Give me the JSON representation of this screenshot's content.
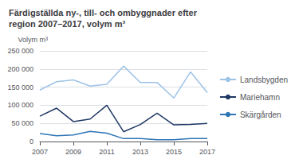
{
  "chart_data": {
    "type": "line",
    "title": "Färdigställda ny-, till- och ombyggnader efter\nregion 2007–2017, volym m³",
    "ylabel": "Volym m³",
    "x": [
      2007,
      2008,
      2009,
      2010,
      2011,
      2012,
      2013,
      2014,
      2015,
      2016,
      2017
    ],
    "series": [
      {
        "name": "Landsbygden",
        "color": "#9DC3E6",
        "values": [
          142000,
          165000,
          170000,
          153000,
          158000,
          208000,
          163000,
          163000,
          120000,
          192000,
          135000
        ]
      },
      {
        "name": "Mariehamn",
        "color": "#1F3864",
        "values": [
          70000,
          92000,
          55000,
          62000,
          100000,
          27000,
          47000,
          78000,
          46000,
          47000,
          50000
        ]
      },
      {
        "name": "Skärgården",
        "color": "#2E75B6",
        "values": [
          22000,
          16000,
          18000,
          28000,
          23000,
          8000,
          8000,
          5000,
          5000,
          8000,
          8000
        ]
      }
    ],
    "xlim": [
      2007,
      2017
    ],
    "xticks": [
      2007,
      2009,
      2011,
      2013,
      2015,
      2017
    ],
    "ylim": [
      0,
      250000
    ],
    "yticks": [
      0,
      {
        "value": 50000,
        "label": "50 000"
      },
      {
        "value": 100000,
        "label": "100 000"
      },
      {
        "value": 150000,
        "label": "150 000"
      },
      {
        "value": 200000,
        "label": "200 000"
      },
      {
        "value": 250000,
        "label": "250 000"
      }
    ],
    "grid": true,
    "legend": "right"
  }
}
